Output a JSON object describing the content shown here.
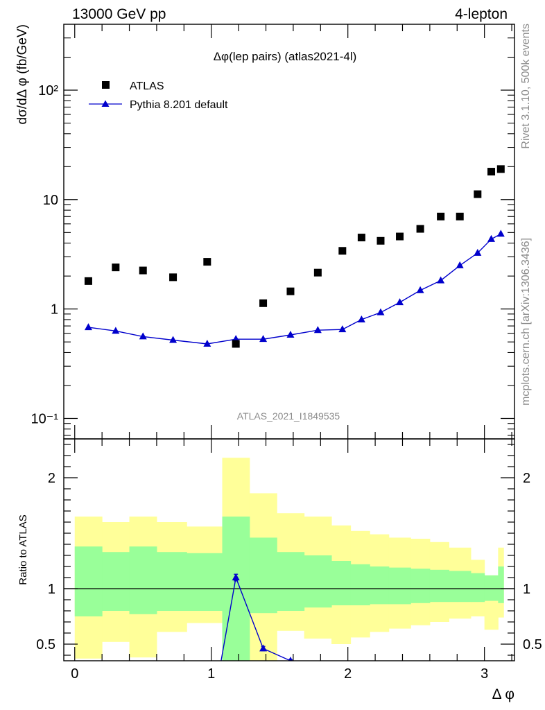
{
  "header": {
    "left": "13000 GeV pp",
    "right": "4-lepton"
  },
  "side_text": {
    "rivet": "Rivet 3.1.10,  500k events",
    "mcplots": "mcplots.cern.ch [arXiv:1306.3436]"
  },
  "chart_data": [
    {
      "type": "scatter",
      "title": "Δφ(lep pairs) (atlas2021-4l)",
      "watermark": "ATLAS_2021_I1849535",
      "xlabel": "",
      "ylabel": "dσ/dΔ φ (fb/GeV)",
      "yscale": "log",
      "ylim": [
        0.065,
        400
      ],
      "xlim": [
        -0.08,
        3.22
      ],
      "y_ticks": [
        {
          "value": 0.1,
          "label": "10⁻¹"
        },
        {
          "value": 1,
          "label": "1"
        },
        {
          "value": 10,
          "label": "10"
        },
        {
          "value": 100,
          "label": "10²"
        }
      ],
      "legend_position": "top-left",
      "series": [
        {
          "name": "ATLAS",
          "marker": "square",
          "color": "#000000",
          "x": [
            0.1,
            0.3,
            0.5,
            0.72,
            0.97,
            1.18,
            1.38,
            1.58,
            1.78,
            1.96,
            2.1,
            2.24,
            2.38,
            2.53,
            2.68,
            2.82,
            2.95,
            3.05,
            3.12
          ],
          "y": [
            1.8,
            2.4,
            2.25,
            1.95,
            2.7,
            0.48,
            1.13,
            1.45,
            2.15,
            3.4,
            4.5,
            4.2,
            4.6,
            5.4,
            7.0,
            7.0,
            11.2,
            18.0,
            19.0
          ]
        },
        {
          "name": "Pythia 8.201 default",
          "marker": "triangle",
          "color": "#0000cc",
          "x": [
            0.1,
            0.3,
            0.5,
            0.72,
            0.97,
            1.18,
            1.38,
            1.58,
            1.78,
            1.96,
            2.1,
            2.24,
            2.38,
            2.53,
            2.68,
            2.82,
            2.95,
            3.05,
            3.12
          ],
          "y": [
            0.68,
            0.63,
            0.56,
            0.52,
            0.48,
            0.53,
            0.53,
            0.58,
            0.64,
            0.65,
            0.8,
            0.93,
            1.15,
            1.48,
            1.82,
            2.5,
            3.25,
            4.35,
            4.85
          ]
        }
      ]
    },
    {
      "type": "line",
      "xlabel": "Δ φ",
      "ylabel": "Ratio to ATLAS",
      "ylim": [
        0.35,
        2.35
      ],
      "xlim": [
        -0.08,
        3.22
      ],
      "x_ticks": [
        0,
        1,
        2,
        3
      ],
      "y_ticks": [
        0.5,
        1,
        2
      ],
      "reference_line": 1,
      "bands": {
        "bin_edges": [
          0.0,
          0.2,
          0.4,
          0.6,
          0.82,
          1.08,
          1.28,
          1.48,
          1.68,
          1.88,
          2.02,
          2.16,
          2.3,
          2.46,
          2.6,
          2.74,
          2.9,
          3.0,
          3.1,
          3.14
        ],
        "inner_color": "#99ff99",
        "outer_color": "#ffff99",
        "inner_low": [
          0.75,
          0.8,
          0.77,
          0.8,
          0.8,
          0.35,
          0.78,
          0.8,
          0.83,
          0.85,
          0.85,
          0.86,
          0.86,
          0.87,
          0.88,
          0.88,
          0.88,
          0.89,
          0.87
        ],
        "inner_high": [
          1.38,
          1.33,
          1.38,
          1.33,
          1.32,
          1.65,
          1.46,
          1.33,
          1.3,
          1.25,
          1.22,
          1.2,
          1.19,
          1.18,
          1.17,
          1.16,
          1.14,
          1.12,
          1.2
        ],
        "outer_low": [
          0.37,
          0.52,
          0.38,
          0.61,
          0.69,
          0.35,
          0.35,
          0.62,
          0.55,
          0.5,
          0.56,
          0.61,
          0.64,
          0.67,
          0.7,
          0.73,
          0.75,
          0.63,
          0.74
        ],
        "outer_high": [
          1.65,
          1.6,
          1.65,
          1.6,
          1.56,
          2.18,
          1.86,
          1.68,
          1.65,
          1.57,
          1.52,
          1.49,
          1.46,
          1.45,
          1.42,
          1.37,
          1.26,
          1.12,
          1.37
        ]
      },
      "series": [
        {
          "name": "Pythia 8.201 default",
          "color": "#0000cc",
          "x": [
            1.05,
            1.18,
            1.38,
            1.58
          ],
          "y": [
            0.2,
            1.1,
            0.46,
            0.35
          ],
          "err": [
            0,
            0.03,
            0.02,
            0.01
          ]
        }
      ]
    }
  ]
}
